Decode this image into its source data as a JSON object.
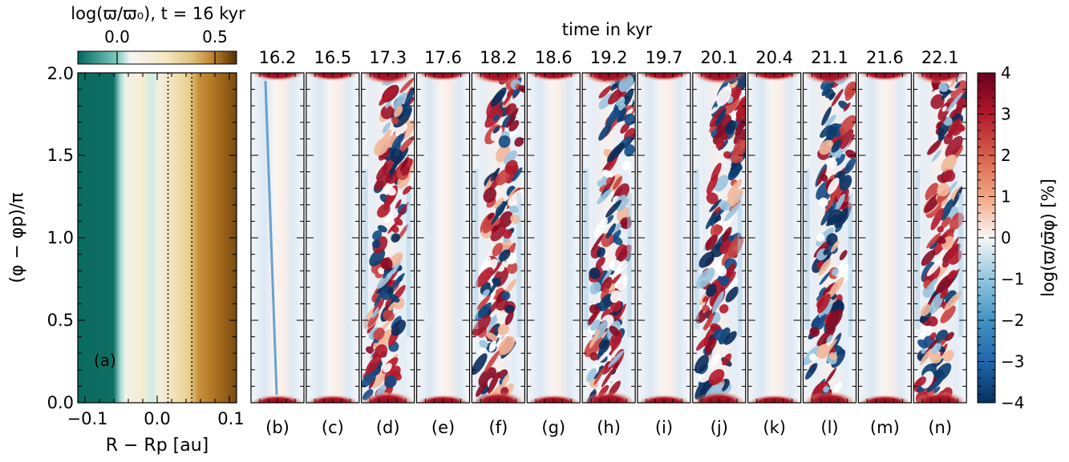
{
  "chart_data": {
    "type": "heatmap",
    "panel_a": {
      "id": "(a)",
      "colorbar_title": "log(ϖ/ϖ₀), t = 16 kyr",
      "colorbar_ticks": [
        "0.0",
        "0.5"
      ],
      "colorbar_range": [
        -0.35,
        0.7
      ],
      "x_label": "R − Rp [au]",
      "x_ticks": [
        "−0.1",
        "0.0",
        "0.1"
      ],
      "x_range": [
        -0.11,
        0.11
      ],
      "y_label": "(φ − φp)/π",
      "y_ticks": [
        "0.0",
        "0.5",
        "1.0",
        "1.5",
        "2.0"
      ],
      "y_range": [
        0,
        2
      ],
      "dotted_lines_x": [
        0.015,
        0.048
      ]
    },
    "time_axis_label": "time in kyr",
    "panels": [
      {
        "id": "(b)",
        "time": "16.2",
        "turb": 0.15
      },
      {
        "id": "(c)",
        "time": "16.5",
        "turb": 0.0
      },
      {
        "id": "(d)",
        "time": "17.3",
        "turb": 0.85
      },
      {
        "id": "(e)",
        "time": "17.6",
        "turb": 0.0
      },
      {
        "id": "(f)",
        "time": "18.2",
        "turb": 0.95
      },
      {
        "id": "(g)",
        "time": "18.6",
        "turb": 0.0
      },
      {
        "id": "(h)",
        "time": "19.2",
        "turb": 1.0
      },
      {
        "id": "(i)",
        "time": "19.7",
        "turb": 0.0
      },
      {
        "id": "(j)",
        "time": "20.1",
        "turb": 1.0
      },
      {
        "id": "(k)",
        "time": "20.4",
        "turb": 0.0
      },
      {
        "id": "(l)",
        "time": "21.1",
        "turb": 1.0
      },
      {
        "id": "(m)",
        "time": "21.6",
        "turb": 0.0
      },
      {
        "id": "(n)",
        "time": "22.1",
        "turb": 1.0
      }
    ],
    "right_colorbar": {
      "label": "log(ϖ/ϖ̄φ) [%]",
      "range": [
        -4,
        4
      ],
      "ticks": [
        "−4",
        "−3",
        "−2",
        "−1",
        "0",
        "1",
        "2",
        "3",
        "4"
      ],
      "colormap": [
        "#053061",
        "#2166ac",
        "#4393c3",
        "#92c5de",
        "#f7f7f7",
        "#f4a582",
        "#d6604d",
        "#b2182b",
        "#67001f"
      ]
    },
    "colors": {
      "teal_dark": "#01665e",
      "teal_light": "#c7eae5",
      "neutral": "#f5f5f5",
      "tan": "#dfc27d",
      "brown_dark": "#8c510a"
    }
  }
}
